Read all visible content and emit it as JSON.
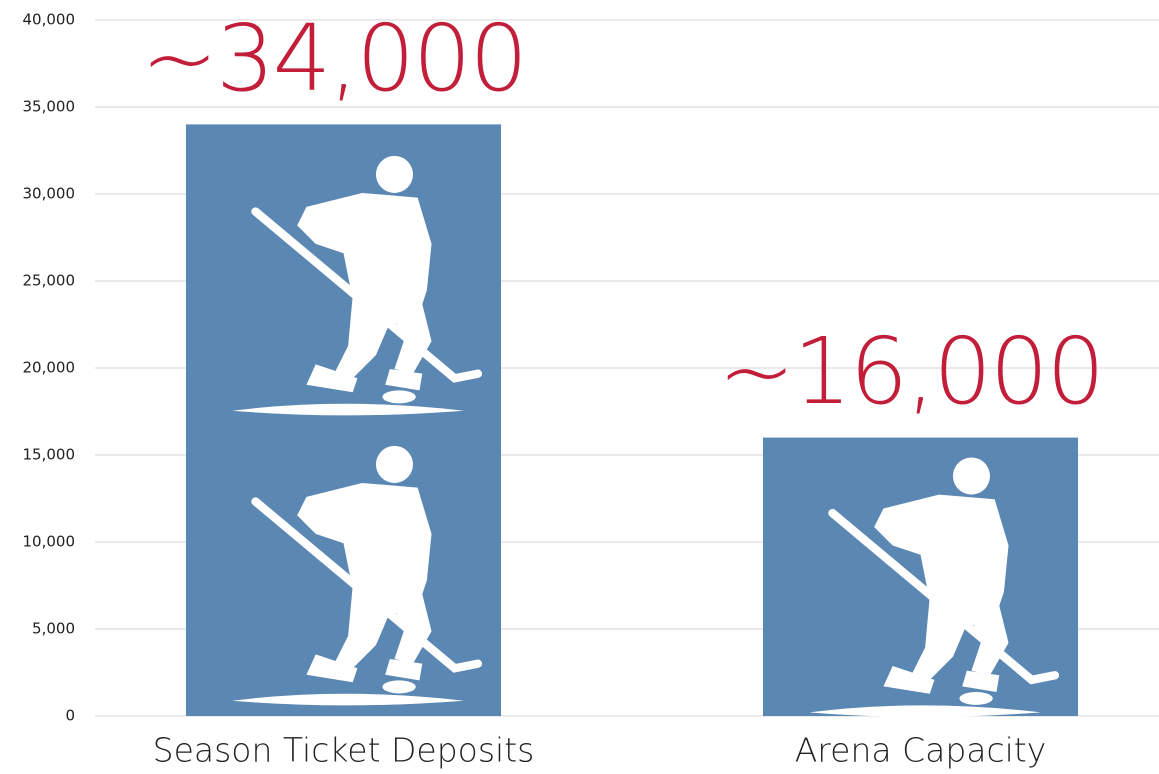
{
  "chart_data": {
    "type": "bar",
    "categories": [
      "Season Ticket Deposits",
      "Arena Capacity"
    ],
    "values": [
      34000,
      16000
    ],
    "value_labels": [
      "~34,000",
      "~16,000"
    ],
    "color": "#5b87b3",
    "ylim": [
      0,
      40000
    ],
    "yticks": [
      0,
      {
        "value": 5000,
        "label": "5,000"
      },
      {
        "value": 10000,
        "label": "10,000"
      },
      {
        "value": 15000,
        "label": "15,000"
      },
      {
        "value": 20000,
        "label": "20,000"
      },
      {
        "value": 25000,
        "label": "25,000"
      },
      {
        "value": 30000,
        "label": "30,000"
      },
      {
        "value": 35000,
        "label": "35,000"
      },
      {
        "value": 40000,
        "label": "40,000"
      }
    ],
    "grid": true
  }
}
